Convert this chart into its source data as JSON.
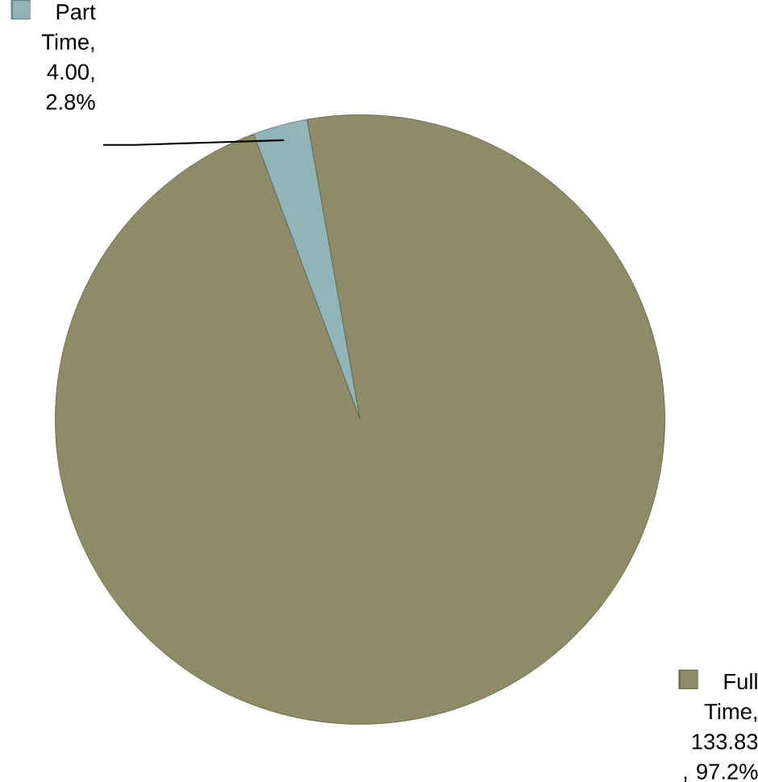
{
  "chart_data": {
    "type": "pie",
    "categories": [
      "Part Time",
      "Full Time"
    ],
    "values": [
      4.0,
      133.83
    ],
    "value_labels": [
      ", 4.00, 2.8%",
      ", 133.83 , 97.2%"
    ],
    "colors": [
      "#8fb5b8",
      "#8e8c66"
    ],
    "legend": "top left"
  }
}
